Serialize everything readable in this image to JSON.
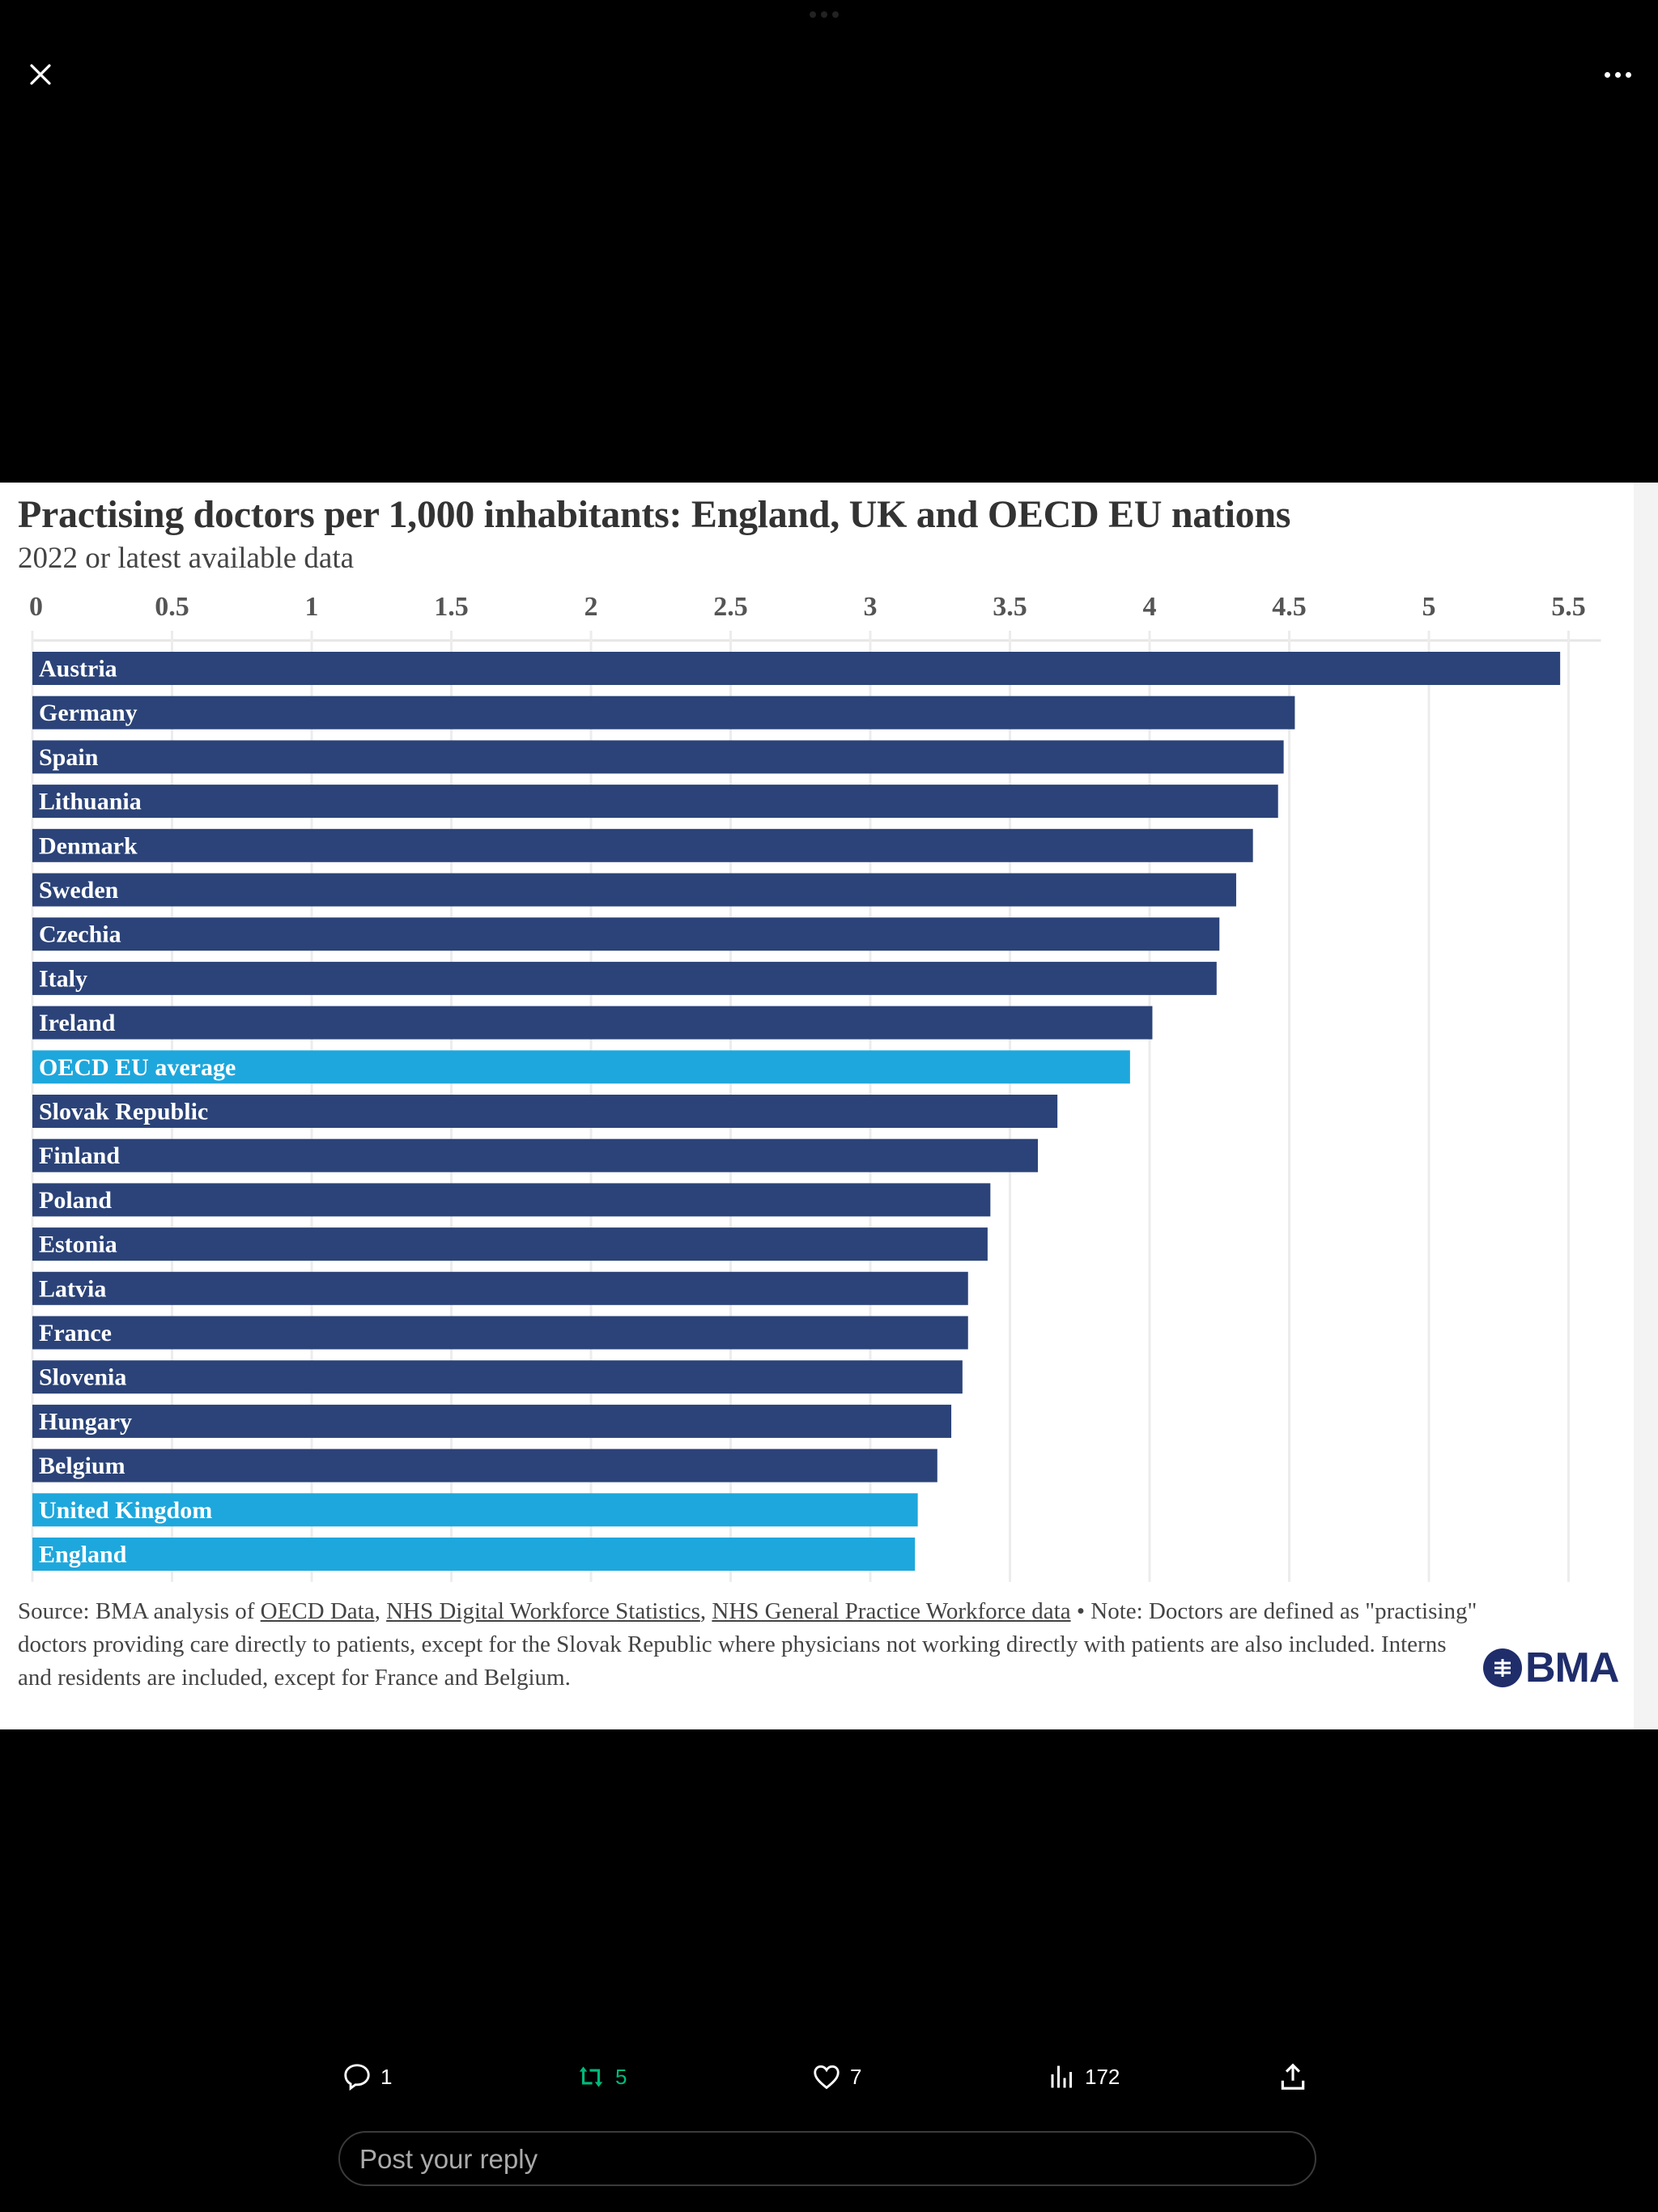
{
  "viewer": {
    "close_icon": "close-icon",
    "more_icon": "more-horizontal-icon"
  },
  "chart_data": {
    "type": "bar",
    "orientation": "horizontal",
    "title": "Practising doctors per 1,000 inhabitants: England, UK and OECD EU nations",
    "subtitle": "2022 or latest available data",
    "xlabel": "",
    "ylabel": "",
    "xlim": [
      0,
      5.5
    ],
    "x_ticks": [
      "0",
      "0.5",
      "1",
      "1.5",
      "2",
      "2.5",
      "3",
      "3.5",
      "4",
      "4.5",
      "5",
      "5.5"
    ],
    "grid": true,
    "colors": {
      "default": "#2b4378",
      "highlight": "#1ea7dc"
    },
    "categories": [
      "Austria",
      "Germany",
      "Spain",
      "Lithuania",
      "Denmark",
      "Sweden",
      "Czechia",
      "Italy",
      "Ireland",
      "OECD EU average",
      "Slovak Republic",
      "Finland",
      "Poland",
      "Estonia",
      "Latvia",
      "France",
      "Slovenia",
      "Hungary",
      "Belgium",
      "United Kingdom",
      "England"
    ],
    "values": [
      5.47,
      4.52,
      4.48,
      4.46,
      4.37,
      4.31,
      4.25,
      4.24,
      4.01,
      3.93,
      3.67,
      3.6,
      3.43,
      3.42,
      3.35,
      3.35,
      3.33,
      3.29,
      3.24,
      3.17,
      3.16
    ],
    "highlighted": [
      "OECD EU average",
      "United Kingdom",
      "England"
    ]
  },
  "footer": {
    "source_prefix": "Source: BMA analysis of ",
    "link1": "OECD Data",
    "sep1": ", ",
    "link2": "NHS Digital Workforce Statistics",
    "sep2": ", ",
    "link3": "NHS General Practice Workforce data",
    "note": " • Note: Doctors are defined as \"practising\" doctors providing care directly to patients, except for the Slovak Republic where physicians not working directly with patients are also included. Interns and residents are included, except for France and Belgium.",
    "logo_text": "BMA"
  },
  "actions": {
    "replies": "1",
    "reposts": "5",
    "likes": "7",
    "views": "172",
    "colors": {
      "repost": "#00ba7c"
    }
  },
  "reply": {
    "placeholder": "Post your reply"
  }
}
